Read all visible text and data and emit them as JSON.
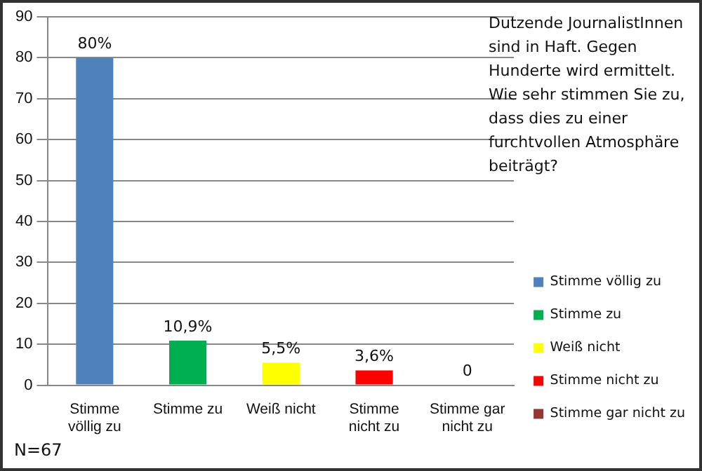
{
  "chart_data": {
    "type": "bar",
    "title": "Dutzende JournalistInnen sind in Haft. Gegen Hunderte wird ermittelt. Wie sehr stimmen Sie zu, dass dies zu einer furchtvollen Atmosphäre beiträgt?",
    "categories": [
      "Stimme völlig zu",
      "Stimme zu",
      "Weiß nicht",
      "Stimme nicht zu",
      "Stimme gar nicht zu"
    ],
    "stacked": true,
    "series": [
      {
        "name": "Stimme völlig zu",
        "color": "#4f81bd",
        "values": [
          80,
          null,
          null,
          null,
          null
        ],
        "value_labels": [
          "80%",
          null,
          null,
          null,
          null
        ]
      },
      {
        "name": "Stimme zu",
        "color": "#00b050",
        "values": [
          null,
          10.9,
          null,
          null,
          null
        ],
        "value_labels": [
          null,
          "10,9%",
          null,
          null,
          null
        ]
      },
      {
        "name": "Weiß nicht",
        "color": "#ffff00",
        "values": [
          null,
          null,
          5.5,
          null,
          null
        ],
        "value_labels": [
          null,
          null,
          "5,5%",
          null,
          null
        ]
      },
      {
        "name": "Stimme nicht zu",
        "color": "#ff0000",
        "values": [
          null,
          null,
          null,
          3.6,
          null
        ],
        "value_labels": [
          null,
          null,
          null,
          "3,6%",
          null
        ]
      },
      {
        "name": "Stimme gar nicht zu",
        "color": "#943634",
        "values": [
          null,
          null,
          null,
          null,
          0
        ],
        "value_labels": [
          null,
          null,
          null,
          null,
          "0"
        ]
      }
    ],
    "ylim": [
      0,
      90
    ],
    "yticks": [
      0,
      10,
      20,
      30,
      40,
      50,
      60,
      70,
      80,
      90
    ],
    "grid": "y",
    "legend": "bottom right",
    "annotations": [
      "N=67"
    ]
  }
}
